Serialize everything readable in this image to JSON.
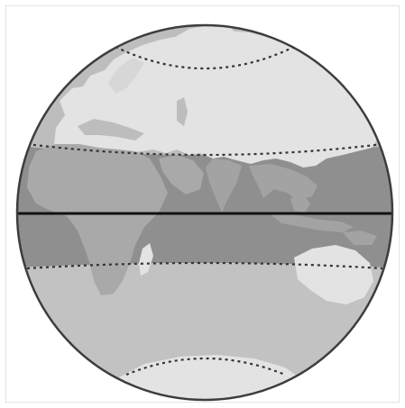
{
  "figure": {
    "subject": "globe-climate-zones",
    "colors": {
      "background": "#ffffff",
      "frame_border": "#e2e2e2",
      "outline": "#3d3d3d",
      "polar_zone": "#c4c4c4",
      "temperate_zone": "#bdbdbd",
      "tropical_zone": "#8f8f8f",
      "land_light": "#e3e3e3",
      "land_tropical": "#a9a9a9",
      "equator_line": "#111111",
      "zone_boundary": "#333333"
    },
    "zones": [
      {
        "name": "north-polar",
        "shade": "light"
      },
      {
        "name": "north-temperate",
        "shade": "light"
      },
      {
        "name": "tropical",
        "shade": "dark"
      },
      {
        "name": "south-temperate",
        "shade": "light"
      },
      {
        "name": "south-polar",
        "shade": "light"
      }
    ],
    "lines": [
      {
        "name": "equator",
        "style": "solid"
      },
      {
        "name": "tropic-of-cancer",
        "style": "dotted"
      },
      {
        "name": "tropic-of-capricorn",
        "style": "dotted"
      },
      {
        "name": "arctic-circle",
        "style": "dotted"
      },
      {
        "name": "antarctic-circle",
        "style": "dotted"
      }
    ],
    "landmasses": [
      "europe",
      "asia",
      "africa",
      "arabia",
      "india",
      "southeast-asia",
      "australia",
      "antarctica",
      "madagascar",
      "arctic-islands"
    ]
  }
}
